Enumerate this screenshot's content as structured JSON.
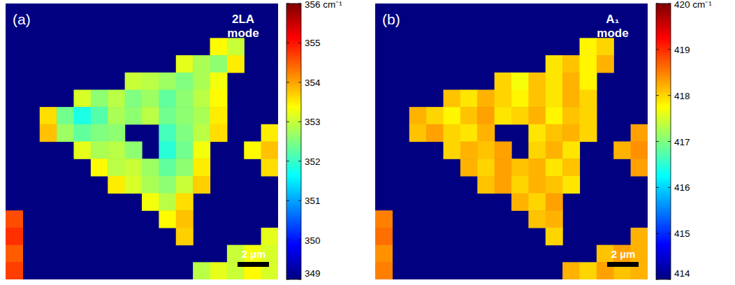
{
  "chart_data": [
    {
      "type": "heatmap",
      "label": "(a)",
      "title": "2LA mode",
      "annotation": "2 µm",
      "tick_labels": false,
      "colorbar_range": [
        349,
        356
      ],
      "colorbar_ticks": [
        349,
        350,
        351,
        352,
        353,
        354,
        355,
        {
          "value": 356,
          "label": "356 cm⁻¹"
        }
      ],
      "cells": [
        [
          null,
          null,
          null,
          null,
          null,
          null,
          null,
          null,
          null,
          null,
          null,
          null,
          null,
          null,
          null,
          null
        ],
        [
          null,
          null,
          null,
          null,
          null,
          null,
          null,
          null,
          null,
          null,
          null,
          null,
          null,
          null,
          null,
          null
        ],
        [
          null,
          null,
          null,
          null,
          null,
          null,
          null,
          null,
          null,
          null,
          null,
          null,
          353.4,
          353.0,
          null,
          null
        ],
        [
          null,
          null,
          null,
          null,
          null,
          null,
          null,
          null,
          null,
          null,
          353.2,
          352.8,
          352.6,
          353.5,
          null,
          null
        ],
        [
          null,
          null,
          null,
          null,
          null,
          null,
          null,
          353.0,
          352.9,
          352.7,
          352.5,
          352.8,
          353.3,
          null,
          null,
          null
        ],
        [
          null,
          null,
          null,
          null,
          353.1,
          352.6,
          352.9,
          352.5,
          352.7,
          352.3,
          352.6,
          352.9,
          353.4,
          null,
          null,
          null
        ],
        [
          null,
          null,
          353.6,
          352.4,
          351.8,
          352.2,
          352.8,
          352.6,
          352.9,
          352.4,
          352.6,
          352.8,
          353.5,
          null,
          null,
          null
        ],
        [
          null,
          null,
          353.8,
          352.7,
          352.3,
          352.5,
          352.6,
          null,
          null,
          352.1,
          352.5,
          352.9,
          353.6,
          null,
          null,
          353.5
        ],
        [
          null,
          null,
          null,
          null,
          353.2,
          352.8,
          352.9,
          352.6,
          null,
          351.9,
          352.4,
          353.3,
          null,
          null,
          353.4,
          353.8
        ],
        [
          null,
          null,
          null,
          null,
          null,
          353.4,
          352.9,
          353.0,
          352.7,
          352.3,
          352.6,
          353.5,
          null,
          null,
          null,
          353.6
        ],
        [
          null,
          null,
          null,
          null,
          null,
          null,
          353.5,
          353.1,
          352.8,
          352.6,
          353.0,
          353.7,
          null,
          null,
          null,
          null
        ],
        [
          null,
          null,
          null,
          null,
          null,
          null,
          null,
          null,
          353.3,
          352.9,
          353.6,
          null,
          null,
          null,
          null,
          null
        ],
        [
          354.6,
          null,
          null,
          null,
          null,
          null,
          null,
          null,
          null,
          353.4,
          353.8,
          null,
          null,
          null,
          null,
          null
        ],
        [
          354.8,
          null,
          null,
          null,
          null,
          null,
          null,
          null,
          null,
          null,
          353.7,
          null,
          null,
          null,
          null,
          353.2
        ],
        [
          354.5,
          null,
          null,
          null,
          null,
          null,
          null,
          null,
          null,
          null,
          null,
          null,
          null,
          353.0,
          353.3,
          353.1
        ],
        [
          354.7,
          null,
          null,
          null,
          null,
          null,
          null,
          null,
          null,
          null,
          null,
          352.9,
          353.2,
          353.0,
          353.4,
          353.1
        ]
      ]
    },
    {
      "type": "heatmap",
      "label": "(b)",
      "title": "A₁ mode",
      "annotation": "2 µm",
      "tick_labels": false,
      "colorbar_range": [
        414,
        420
      ],
      "colorbar_ticks": [
        414,
        415,
        416,
        417,
        418,
        419,
        {
          "value": 420,
          "label": "420 cm⁻¹"
        }
      ],
      "cells": [
        [
          null,
          null,
          null,
          null,
          null,
          null,
          null,
          null,
          null,
          null,
          null,
          null,
          null,
          null,
          null,
          null
        ],
        [
          null,
          null,
          null,
          null,
          null,
          null,
          null,
          null,
          null,
          null,
          null,
          null,
          null,
          null,
          null,
          null
        ],
        [
          null,
          null,
          null,
          null,
          null,
          null,
          null,
          null,
          null,
          null,
          null,
          null,
          417.8,
          418.0,
          null,
          null
        ],
        [
          null,
          null,
          null,
          null,
          null,
          null,
          null,
          null,
          null,
          null,
          417.9,
          418.1,
          417.8,
          418.2,
          null,
          null
        ],
        [
          null,
          null,
          null,
          null,
          null,
          null,
          null,
          418.0,
          417.7,
          418.1,
          417.9,
          418.2,
          417.8,
          null,
          null,
          null
        ],
        [
          null,
          null,
          null,
          null,
          418.1,
          417.9,
          418.2,
          418.0,
          417.8,
          418.1,
          417.9,
          418.2,
          418.0,
          null,
          null,
          null
        ],
        [
          null,
          null,
          418.2,
          418.0,
          417.8,
          418.1,
          418.3,
          417.9,
          418.0,
          418.2,
          417.8,
          418.1,
          418.0,
          null,
          null,
          null
        ],
        [
          null,
          null,
          418.1,
          418.3,
          418.0,
          417.9,
          418.2,
          null,
          null,
          417.9,
          418.1,
          418.2,
          418.0,
          null,
          null,
          418.3
        ],
        [
          null,
          null,
          null,
          null,
          418.0,
          418.2,
          418.1,
          418.3,
          null,
          418.0,
          418.2,
          417.9,
          null,
          null,
          418.2,
          418.4
        ],
        [
          null,
          null,
          null,
          null,
          null,
          418.2,
          418.0,
          418.3,
          418.1,
          418.2,
          417.9,
          418.1,
          null,
          null,
          null,
          418.3
        ],
        [
          null,
          null,
          null,
          null,
          null,
          null,
          418.1,
          418.3,
          418.0,
          418.2,
          418.1,
          417.9,
          null,
          null,
          null,
          null
        ],
        [
          null,
          null,
          null,
          null,
          null,
          null,
          null,
          null,
          418.2,
          418.0,
          418.3,
          null,
          null,
          null,
          null,
          null
        ],
        [
          418.5,
          null,
          null,
          null,
          null,
          null,
          null,
          null,
          null,
          418.1,
          418.2,
          null,
          null,
          null,
          null,
          null
        ],
        [
          418.6,
          null,
          null,
          null,
          null,
          null,
          null,
          null,
          null,
          null,
          418.0,
          null,
          null,
          null,
          null,
          418.2
        ],
        [
          418.4,
          null,
          null,
          null,
          null,
          null,
          null,
          null,
          null,
          null,
          null,
          null,
          null,
          418.1,
          418.3,
          418.2
        ],
        [
          418.5,
          null,
          null,
          null,
          null,
          null,
          null,
          null,
          null,
          null,
          null,
          418.2,
          418.0,
          418.3,
          418.1,
          418.2
        ]
      ]
    }
  ]
}
